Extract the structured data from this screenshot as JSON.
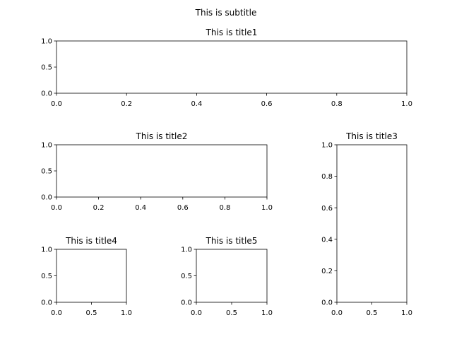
{
  "suptitle": "This is subtitle",
  "chart_data": [
    {
      "type": "line",
      "title": "This is title1",
      "xlim": [
        0.0,
        1.0
      ],
      "ylim": [
        0.0,
        1.0
      ],
      "xticks": [
        0.0,
        0.2,
        0.4,
        0.6,
        0.8,
        1.0
      ],
      "yticks": [
        0.0,
        0.5,
        1.0
      ],
      "xtick_labels": [
        "0.0",
        "0.2",
        "0.4",
        "0.6",
        "0.8",
        "1.0"
      ],
      "ytick_labels": [
        "0.0",
        "0.5",
        "1.0"
      ],
      "series": [],
      "grid": false
    },
    {
      "type": "line",
      "title": "This is title2",
      "xlim": [
        0.0,
        1.0
      ],
      "ylim": [
        0.0,
        1.0
      ],
      "xticks": [
        0.0,
        0.2,
        0.4,
        0.6,
        0.8,
        1.0
      ],
      "yticks": [
        0.0,
        0.5,
        1.0
      ],
      "xtick_labels": [
        "0.0",
        "0.2",
        "0.4",
        "0.6",
        "0.8",
        "1.0"
      ],
      "ytick_labels": [
        "0.0",
        "0.5",
        "1.0"
      ],
      "series": [],
      "grid": false
    },
    {
      "type": "line",
      "title": "This is title3",
      "xlim": [
        0.0,
        1.0
      ],
      "ylim": [
        0.0,
        1.0
      ],
      "xticks": [
        0.0,
        0.5,
        1.0
      ],
      "yticks": [
        0.0,
        0.2,
        0.4,
        0.6,
        0.8,
        1.0
      ],
      "xtick_labels": [
        "0.0",
        "0.5",
        "1.0"
      ],
      "ytick_labels": [
        "0.0",
        "0.2",
        "0.4",
        "0.6",
        "0.8",
        "1.0"
      ],
      "series": [],
      "grid": false
    },
    {
      "type": "line",
      "title": "This is title4",
      "xlim": [
        0.0,
        1.0
      ],
      "ylim": [
        0.0,
        1.0
      ],
      "xticks": [
        0.0,
        0.5,
        1.0
      ],
      "yticks": [
        0.0,
        0.5,
        1.0
      ],
      "xtick_labels": [
        "0.0",
        "0.5",
        "1.0"
      ],
      "ytick_labels": [
        "0.0",
        "0.5",
        "1.0"
      ],
      "series": [],
      "grid": false
    },
    {
      "type": "line",
      "title": "This is title5",
      "xlim": [
        0.0,
        1.0
      ],
      "ylim": [
        0.0,
        1.0
      ],
      "xticks": [
        0.0,
        0.5,
        1.0
      ],
      "yticks": [
        0.0,
        0.5,
        1.0
      ],
      "xtick_labels": [
        "0.0",
        "0.5",
        "1.0"
      ],
      "ytick_labels": [
        "0.0",
        "0.5",
        "1.0"
      ],
      "series": [],
      "grid": false
    }
  ]
}
